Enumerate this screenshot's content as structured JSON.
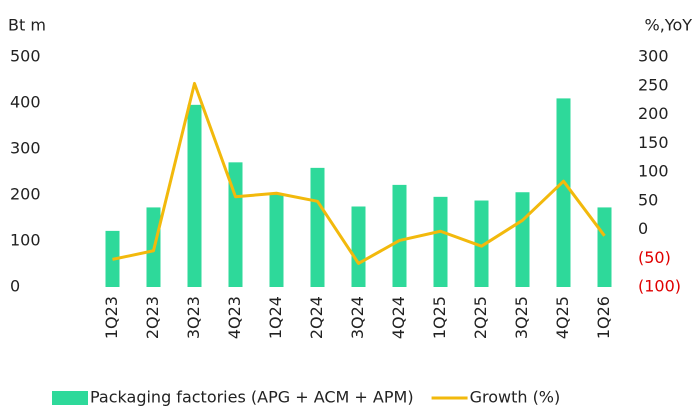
{
  "chart_data": {
    "type": "bar_line",
    "y_label": "Bt m",
    "y2_label": "%,YoY",
    "categories": [
      "1Q23",
      "2Q23",
      "3Q23",
      "4Q23",
      "1Q24",
      "2Q24",
      "3Q24",
      "4Q24",
      "1Q25",
      "2Q25",
      "3Q25",
      "4Q25",
      "1Q26"
    ],
    "series": [
      {
        "name": "Packaging factories (APG + ACM + APM)",
        "type": "bar",
        "color": "#2ed99a",
        "values": [
          122,
          173,
          396,
          271,
          202,
          259,
          175,
          222,
          196,
          188,
          206,
          410,
          173
        ]
      },
      {
        "name": "Growth (%)",
        "type": "line",
        "axis": "y2",
        "color": "#f2b90c",
        "values": [
          -52,
          -37,
          254,
          57,
          63,
          49,
          -59,
          -19,
          -3,
          -29,
          16,
          84,
          -11
        ]
      }
    ],
    "ylim": [
      0,
      500
    ],
    "yticks": [
      0,
      100,
      200,
      300,
      400,
      500
    ],
    "y2lim": [
      -100,
      300
    ],
    "y2ticks": [
      {
        "value": -100,
        "label": "(100)"
      },
      {
        "value": -50,
        "label": "(50)"
      },
      0,
      50,
      100,
      150,
      200,
      250,
      300
    ],
    "negative_tick_color": "#e00000",
    "grid": false,
    "legend": "bottom"
  }
}
